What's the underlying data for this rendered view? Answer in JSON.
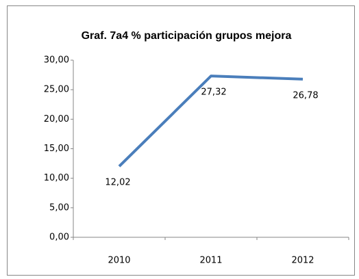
{
  "chart_data": {
    "type": "line",
    "title": "Graf. 7a4 % participación grupos mejora",
    "categories": [
      "2010",
      "2011",
      "2012"
    ],
    "values": [
      12.02,
      27.32,
      26.78
    ],
    "value_labels": [
      "12,02",
      "27,32",
      "26,78"
    ],
    "color": "#4a7ebb",
    "ylim": [
      0,
      30
    ],
    "yticks": [
      {
        "value": 0,
        "label": "0,00"
      },
      {
        "value": 5,
        "label": "5,00"
      },
      {
        "value": 10,
        "label": "10,00"
      },
      {
        "value": 15,
        "label": "15,00"
      },
      {
        "value": 20,
        "label": "20,00"
      },
      {
        "value": 25,
        "label": "25,00"
      },
      {
        "value": 30,
        "label": "30,00"
      }
    ],
    "grid": false
  }
}
